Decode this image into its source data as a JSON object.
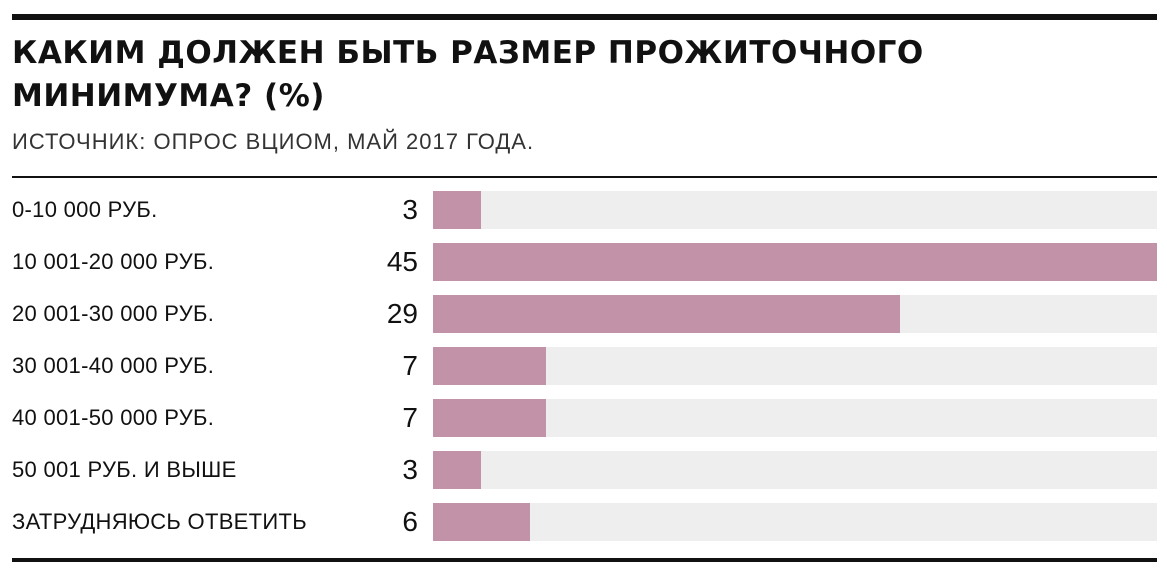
{
  "title": "КАКИМ ДОЛЖЕН БЫТЬ РАЗМЕР ПРОЖИТОЧНОГО МИНИМУМА? (%)",
  "source": "ИСТОЧНИК: ОПРОС ВЦИОМ, МАЙ 2017 ГОДА.",
  "colors": {
    "bar": "#c293a8",
    "track": "#efeeef",
    "rule": "#111111"
  },
  "chart_data": {
    "type": "bar",
    "orientation": "horizontal",
    "title": "КАКИМ ДОЛЖЕН БЫТЬ РАЗМЕР ПРОЖИТОЧНОГО МИНИМУМА? (%)",
    "subtitle": "ИСТОЧНИК: ОПРОС ВЦИОМ, МАЙ 2017 ГОДА.",
    "xlim": [
      0,
      45
    ],
    "grid": false,
    "categories": [
      "0-10 000 РУБ.",
      "10 001-20 000 РУБ.",
      "20 001-30 000 РУБ.",
      "30 001-40 000 РУБ.",
      "40 001-50 000 РУБ.",
      "50 001 РУБ. И ВЫШЕ",
      "ЗАТРУДНЯЮСЬ ОТВЕТИТЬ"
    ],
    "values": [
      3,
      45,
      29,
      7,
      7,
      3,
      6
    ]
  }
}
